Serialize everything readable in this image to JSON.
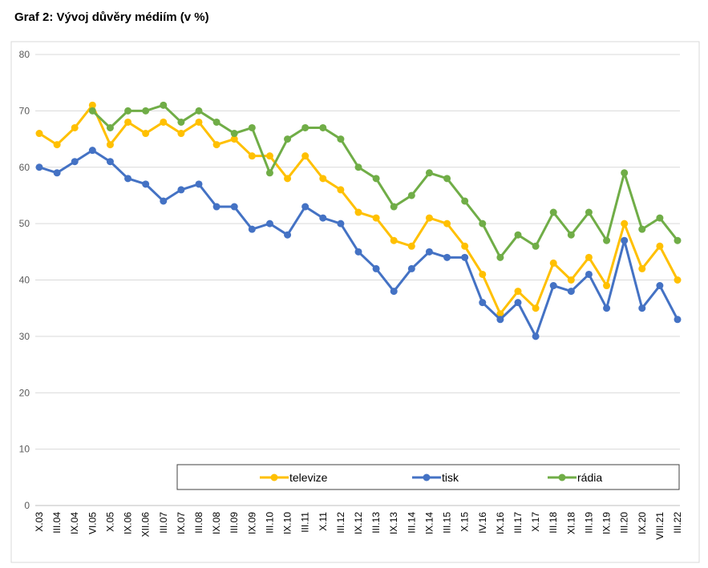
{
  "page": {
    "title": "Graf 2: Vývoj důvěry médiím (v %)"
  },
  "chart_data": {
    "type": "line",
    "title": "Graf 2: Vývoj důvěry médiím (v %)",
    "xlabel": "",
    "ylabel": "",
    "ylim": [
      0,
      80
    ],
    "yticks": [
      0,
      10,
      20,
      30,
      40,
      50,
      60,
      70,
      80
    ],
    "grid": true,
    "legend_position": "bottom-right",
    "categories": [
      "X.03",
      "III.04",
      "IX.04",
      "VI.05",
      "X.05",
      "IX.06",
      "XII.06",
      "III.07",
      "IX.07",
      "III.08",
      "IX.08",
      "III.09",
      "IX.09",
      "III.10",
      "IX.10",
      "III.11",
      "X.11",
      "III.12",
      "IX.12",
      "III.13",
      "IX.13",
      "III.14",
      "IX.14",
      "III.15",
      "X.15",
      "IV.16",
      "IX.16",
      "III.17",
      "X.17",
      "III.18",
      "XI.18",
      "III.19",
      "IX.19",
      "III.20",
      "IX.20",
      "VIII.21",
      "III.22"
    ],
    "series": [
      {
        "name": "televize",
        "color": "#FFC000",
        "values": [
          66,
          64,
          67,
          71,
          64,
          68,
          66,
          68,
          66,
          68,
          64,
          65,
          62,
          62,
          58,
          62,
          58,
          56,
          52,
          51,
          47,
          46,
          51,
          50,
          46,
          41,
          34,
          38,
          35,
          43,
          40,
          44,
          39,
          50,
          42,
          46,
          40
        ]
      },
      {
        "name": "tisk",
        "color": "#4472C4",
        "values": [
          60,
          59,
          61,
          63,
          61,
          58,
          57,
          54,
          56,
          57,
          53,
          53,
          49,
          50,
          48,
          53,
          51,
          50,
          45,
          42,
          38,
          42,
          45,
          44,
          44,
          36,
          33,
          36,
          30,
          39,
          38,
          41,
          35,
          47,
          35,
          39,
          33
        ]
      },
      {
        "name": "rádia",
        "color": "#70AD47",
        "values": [
          null,
          null,
          null,
          70,
          67,
          70,
          70,
          71,
          68,
          70,
          68,
          66,
          67,
          59,
          65,
          67,
          67,
          65,
          60,
          58,
          53,
          55,
          59,
          58,
          54,
          50,
          44,
          48,
          46,
          52,
          48,
          52,
          47,
          59,
          49,
          51,
          47
        ]
      }
    ]
  }
}
